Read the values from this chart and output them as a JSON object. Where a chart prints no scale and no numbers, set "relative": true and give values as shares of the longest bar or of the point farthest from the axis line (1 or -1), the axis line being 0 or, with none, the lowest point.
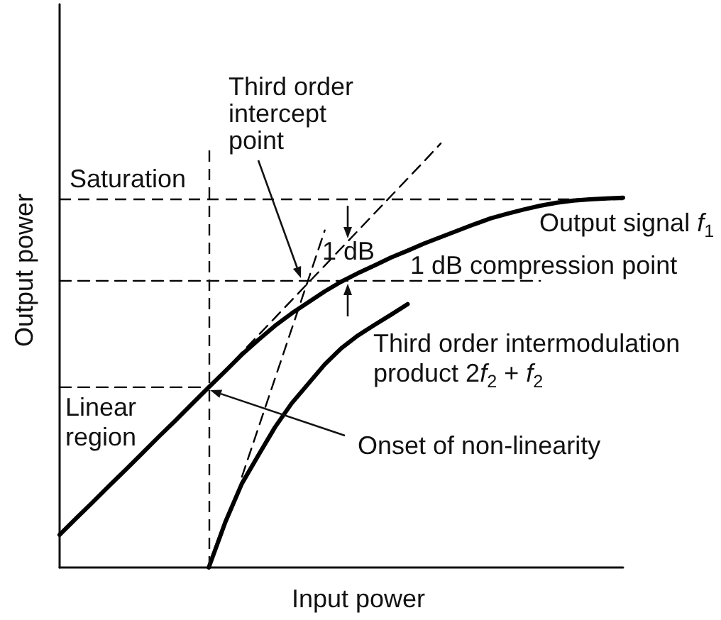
{
  "chart_data": {
    "type": "line",
    "relative": true,
    "xlabel": "Input power",
    "ylabel": "Output power",
    "marker": "none",
    "categories": [
      null,
      null,
      null,
      null,
      null,
      null,
      null,
      null,
      null,
      null,
      null,
      null,
      null,
      null,
      null,
      null,
      null,
      null,
      null,
      null,
      null,
      null,
      null,
      null,
      null,
      null,
      null,
      null,
      null,
      null,
      null,
      null,
      null,
      null,
      null
    ],
    "series": [
      {
        "name": "Output signal f$_{1}$",
        "color": "#000000",
        "line_style": "solid",
        "values": [
          0.077,
          0.116,
          0.154,
          0.193,
          0.231,
          0.27,
          0.309,
          0.347,
          0.386,
          0.425,
          0.463,
          0.502,
          0.537,
          0.57,
          0.599,
          0.625,
          0.651,
          0.674,
          0.694,
          0.712,
          0.731,
          0.747,
          0.764,
          0.779,
          0.794,
          0.809,
          0.823,
          0.834,
          0.844,
          0.853,
          0.86,
          0.865,
          0.868,
          0.87,
          0.872
        ]
      },
      {
        "name": "Third order intermodulation product 2f$_{2}$ + f$_{2}$",
        "color": "#000000",
        "line_style": "solid",
        "values": [
          null,
          null,
          null,
          null,
          null,
          null,
          null,
          null,
          null,
          0,
          0.107,
          0.198,
          0.265,
          0.331,
          0.387,
          0.433,
          0.479,
          0.517,
          0.547,
          0.572,
          0.596,
          0.621,
          null,
          null,
          null,
          null,
          null,
          null,
          null,
          null,
          null,
          null,
          null,
          null,
          null
        ]
      },
      {
        "color": "#000000",
        "line_style": "dashed",
        "values": [
          null,
          null,
          null,
          null,
          null,
          null,
          null,
          null,
          null,
          0.425,
          0.466,
          0.507,
          0.548,
          0.589,
          0.63,
          0.671,
          0.712,
          0.753,
          0.794,
          0.835,
          0.876,
          0.917,
          0.958,
          1.0,
          null,
          null,
          null,
          null,
          null,
          null,
          null,
          null,
          null,
          null,
          null
        ]
      },
      {
        "color": "#000000",
        "line_style": "dashed",
        "values": [
          null,
          null,
          null,
          null,
          null,
          null,
          null,
          null,
          null,
          null,
          null,
          0.214,
          0.33,
          0.446,
          0.562,
          0.678,
          0.795,
          null,
          null,
          null,
          null,
          null,
          null,
          null,
          null,
          null,
          null,
          null,
          null,
          null,
          null,
          null,
          null,
          null,
          null
        ]
      },
      {
        "color": "#000000",
        "line_style": "dashed",
        "values": [
          0.676,
          0.676,
          0.676,
          0.676,
          0.676,
          0.676,
          0.676,
          0.676,
          0.676,
          0.676,
          0.676,
          0.676,
          0.676,
          0.676,
          0.676,
          0.676,
          0.676,
          0.676,
          0.676,
          0.676,
          0.676,
          0.676,
          0.676,
          0.676,
          0.676,
          0.676,
          0.676,
          0.676,
          0.676,
          0.676,
          null,
          null,
          null,
          null,
          null
        ]
      },
      {
        "color": "#000000",
        "line_style": "dashed",
        "values": [
          0.425,
          0.425,
          0.425,
          0.425,
          0.425,
          0.425,
          0.425,
          0.425,
          0.425,
          0.425,
          null,
          null,
          null,
          null,
          null,
          null,
          null,
          null,
          null,
          null,
          null,
          null,
          null,
          null,
          null,
          null,
          null,
          null,
          null,
          null,
          null,
          null,
          null,
          null,
          null
        ]
      }
    ],
    "ref_lines": [
      {
        "axis": "y",
        "value": 0.87,
        "label": "Saturation",
        "color": "#000000",
        "line_style": "dashed"
      }
    ],
    "annotations": [
      "Third order intercept point",
      "1 dB",
      "1 dB compression point",
      "Linear region",
      "Onset of non-linearity"
    ]
  }
}
